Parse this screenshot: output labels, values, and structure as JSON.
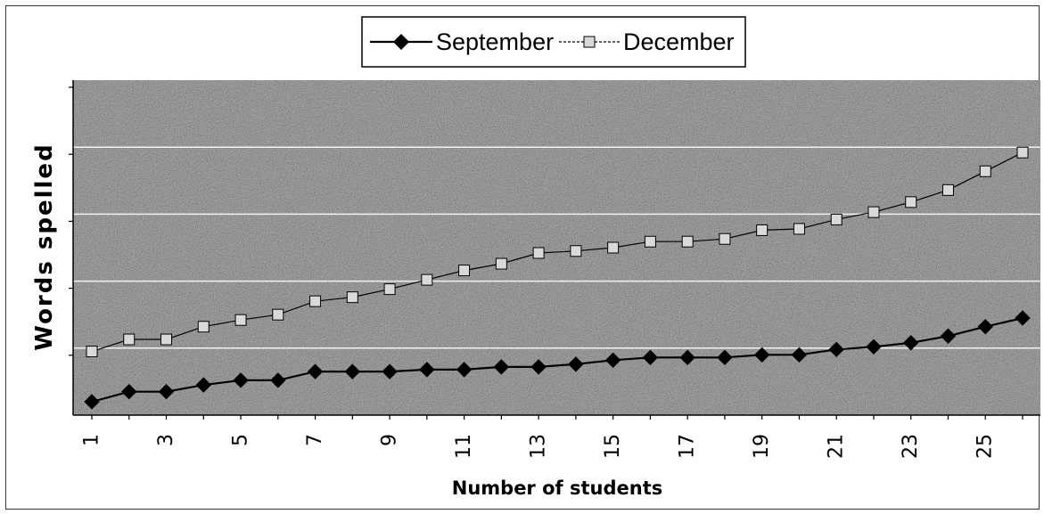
{
  "chart_data": {
    "type": "line",
    "title": "",
    "xlabel": "Number of students",
    "ylabel": "Words spelled",
    "x": [
      1,
      2,
      3,
      4,
      5,
      6,
      7,
      8,
      9,
      10,
      11,
      12,
      13,
      14,
      15,
      16,
      17,
      18,
      19,
      20,
      21,
      22,
      23,
      24,
      25,
      26
    ],
    "x_tick_labels": [
      "1",
      "3",
      "5",
      "7",
      "9",
      "11",
      "13",
      "15",
      "17",
      "19",
      "21",
      "23",
      "25"
    ],
    "ylim": [
      0,
      50
    ],
    "y_gridlines": [
      10,
      20,
      30,
      40
    ],
    "y_tick_labels_shown": false,
    "grid": true,
    "legend": "top-center",
    "series": [
      {
        "name": "September",
        "marker": "diamond",
        "color": "#000000",
        "values": [
          2,
          3.5,
          3.5,
          4.5,
          5.2,
          5.2,
          6.5,
          6.5,
          6.5,
          6.8,
          6.8,
          7.2,
          7.2,
          7.6,
          8.2,
          8.6,
          8.6,
          8.6,
          9.0,
          9.0,
          9.8,
          10.2,
          10.8,
          11.8,
          13.2,
          14.5
        ]
      },
      {
        "name": "December",
        "marker": "square",
        "color": "#ffffff",
        "values": [
          9.5,
          11.3,
          11.3,
          13.2,
          14.2,
          15.0,
          17.0,
          17.6,
          18.8,
          20.2,
          21.6,
          22.6,
          24.2,
          24.5,
          25.0,
          25.9,
          25.9,
          26.3,
          27.6,
          27.8,
          29.2,
          30.3,
          31.8,
          33.6,
          36.4,
          39.2
        ]
      }
    ],
    "colors": {
      "plot_background": "#a6a6a6",
      "gridline": "#f2f2f2",
      "axis": "#000000"
    }
  }
}
